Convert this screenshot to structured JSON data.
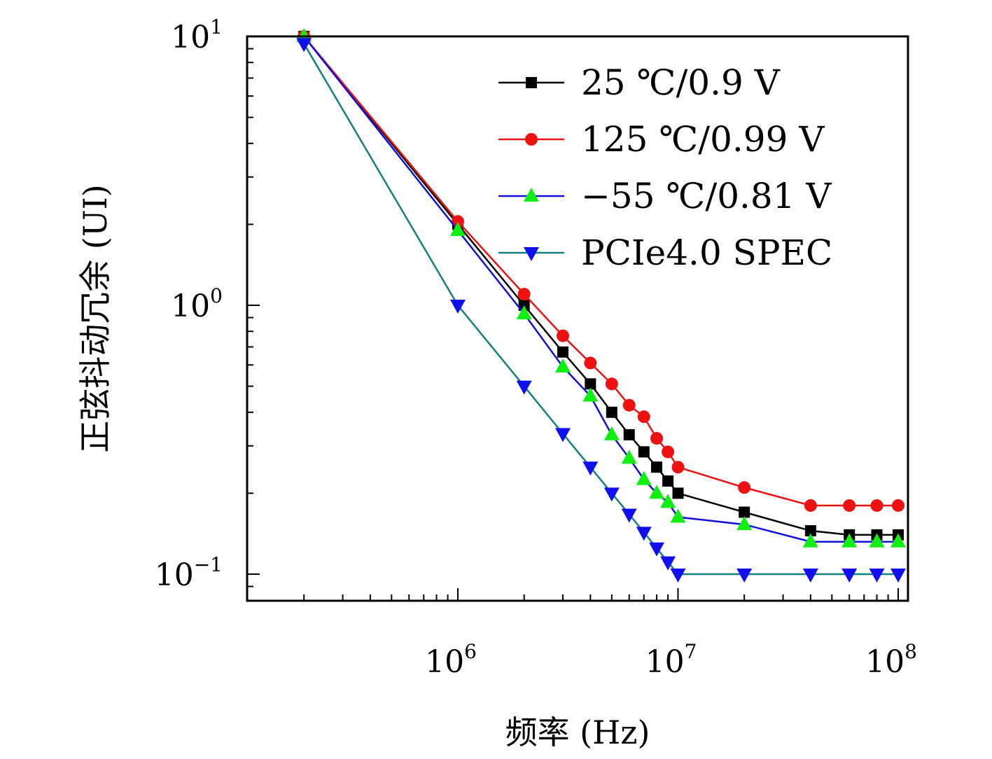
{
  "chart_data": {
    "type": "line",
    "xscale": "log",
    "yscale": "log",
    "xlim": [
      135000.0,
      105000000.0
    ],
    "ylim": [
      0.08,
      10
    ],
    "xlabel": "频率 (Hz)",
    "ylabel": "正弦抖动冗余 (UI)",
    "legend_position": "top-right",
    "grid": false,
    "x_ticks": [
      {
        "value": 1000000.0,
        "base": "10",
        "exp": "6"
      },
      {
        "value": 10000000.0,
        "base": "10",
        "exp": "7"
      },
      {
        "value": 100000000.0,
        "base": "10",
        "exp": "8"
      }
    ],
    "y_ticks": [
      {
        "value": 10,
        "base": "10",
        "exp": "1"
      },
      {
        "value": 1,
        "base": "10",
        "exp": "0"
      },
      {
        "value": 0.1,
        "base": "10",
        "exp": "−1"
      }
    ],
    "series": [
      {
        "name": "25 ℃/0.9 V",
        "color": "#000000",
        "marker": "square",
        "x": [
          200000.0,
          1000000.0,
          2000000.0,
          3000000.0,
          4000000.0,
          5000000.0,
          6000000.0,
          7000000.0,
          8000000.0,
          9000000.0,
          10000000.0,
          20000000.0,
          40000000.0,
          60000000.0,
          80000000.0,
          100000000.0
        ],
        "y": [
          10,
          2.0,
          1.0,
          0.67,
          0.51,
          0.4,
          0.33,
          0.285,
          0.25,
          0.222,
          0.2,
          0.17,
          0.145,
          0.14,
          0.14,
          0.14
        ]
      },
      {
        "name": "125 ℃/0.99 V",
        "color": "#ee1111",
        "marker": "circle",
        "x": [
          200000.0,
          1000000.0,
          2000000.0,
          3000000.0,
          4000000.0,
          5000000.0,
          6000000.0,
          7000000.0,
          8000000.0,
          9000000.0,
          10000000.0,
          20000000.0,
          40000000.0,
          60000000.0,
          80000000.0,
          100000000.0
        ],
        "y": [
          10,
          2.05,
          1.1,
          0.77,
          0.61,
          0.51,
          0.425,
          0.385,
          0.32,
          0.285,
          0.25,
          0.21,
          0.18,
          0.18,
          0.18,
          0.18
        ]
      },
      {
        "name": "−55 ℃/0.81 V",
        "color": "#1010dd",
        "marker_color": "#11ee11",
        "marker": "triangle-up",
        "x": [
          200000.0,
          1000000.0,
          2000000.0,
          3000000.0,
          4000000.0,
          5000000.0,
          6000000.0,
          7000000.0,
          8000000.0,
          9000000.0,
          10000000.0,
          20000000.0,
          40000000.0,
          60000000.0,
          80000000.0,
          100000000.0
        ],
        "y": [
          10,
          1.9,
          0.93,
          0.59,
          0.46,
          0.33,
          0.27,
          0.225,
          0.2,
          0.185,
          0.163,
          0.153,
          0.132,
          0.132,
          0.132,
          0.132
        ]
      },
      {
        "name": "PCIe4.0 SPEC",
        "color": "#138080",
        "marker_color": "#1010ee",
        "marker": "triangle-down",
        "x": [
          200000.0,
          1000000.0,
          2000000.0,
          3000000.0,
          4000000.0,
          5000000.0,
          6000000.0,
          7000000.0,
          8000000.0,
          9000000.0,
          10000000.0,
          20000000.0,
          40000000.0,
          60000000.0,
          80000000.0,
          100000000.0
        ],
        "y": [
          9.4,
          1.0,
          0.5,
          0.333,
          0.25,
          0.2,
          0.167,
          0.143,
          0.125,
          0.111,
          0.1,
          0.1,
          0.1,
          0.1,
          0.1,
          0.1
        ]
      }
    ]
  }
}
